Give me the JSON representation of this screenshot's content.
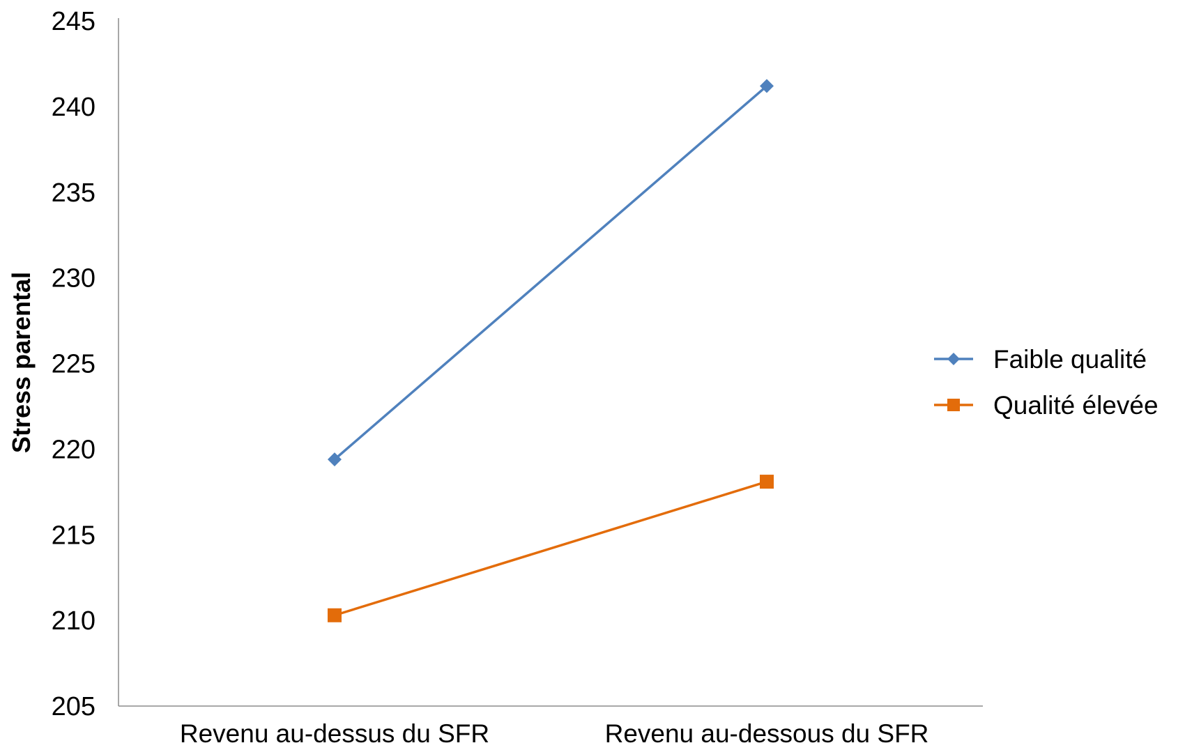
{
  "chart_data": {
    "type": "line",
    "title": "",
    "ylabel": "Stress parental",
    "xlabel": "",
    "ylim": [
      205,
      245
    ],
    "yticks": [
      205,
      210,
      215,
      220,
      225,
      230,
      235,
      240,
      245
    ],
    "grid": false,
    "legend_position": "right",
    "categories": [
      "Revenu au-dessus du SFR",
      "Revenu au-dessous du SFR"
    ],
    "series": [
      {
        "name": "Faible qualité",
        "values": [
          219.4,
          241.2
        ],
        "color": "#4f81bd",
        "marker": "diamond"
      },
      {
        "name": "Qualité élevée",
        "values": [
          210.3,
          218.1
        ],
        "color": "#e36c0a",
        "marker": "square"
      }
    ]
  }
}
